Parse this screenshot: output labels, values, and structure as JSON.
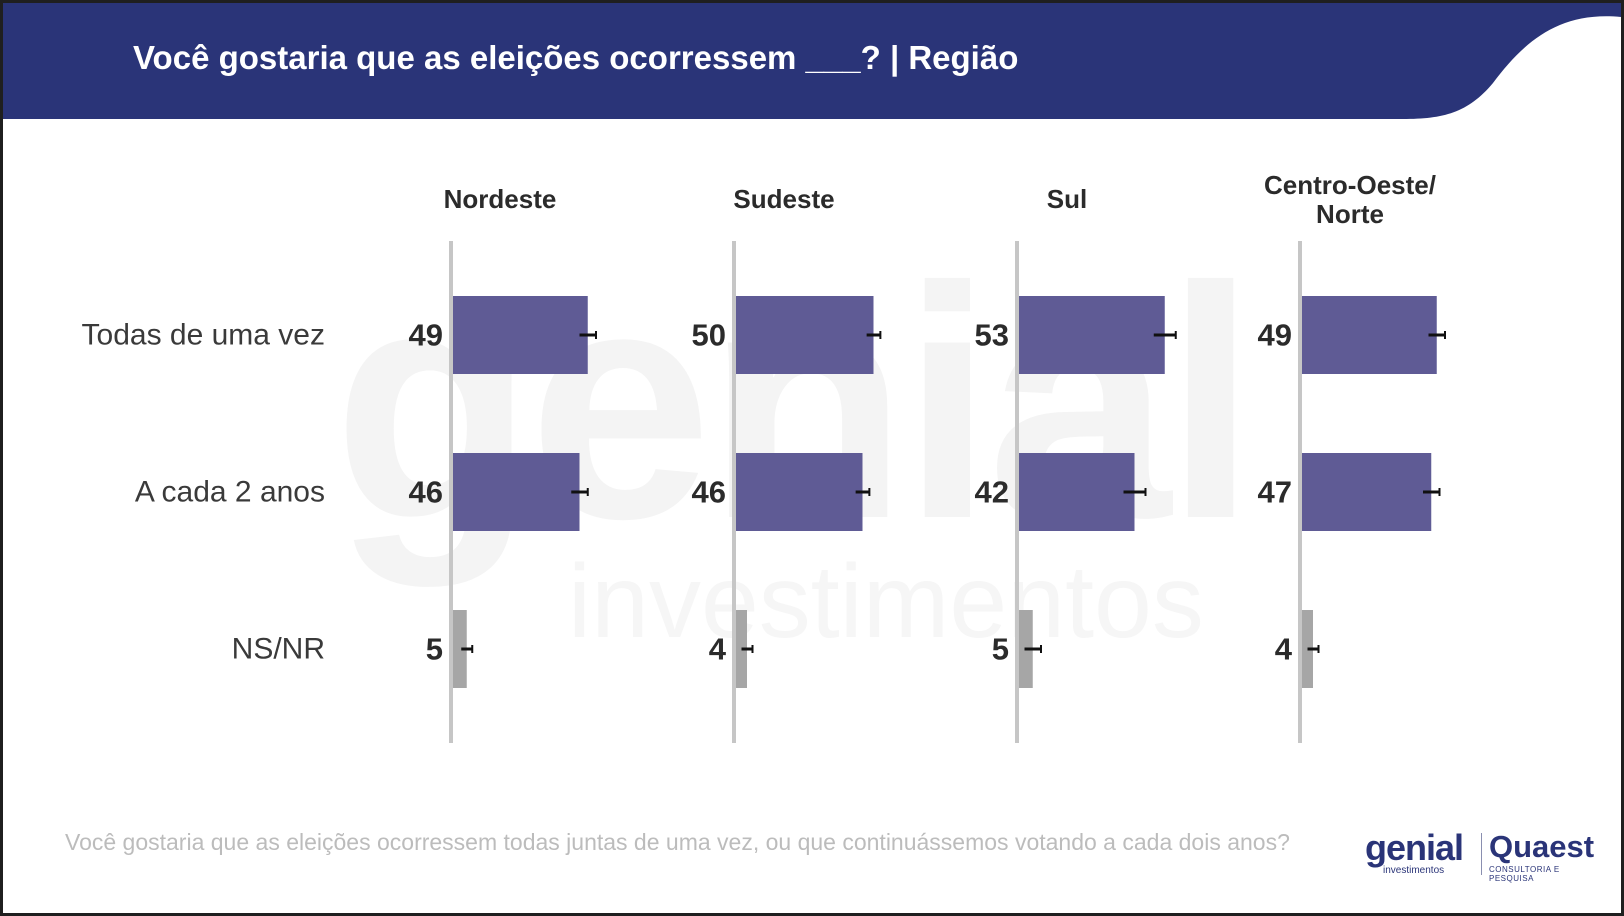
{
  "header": {
    "title": "Você gostaria que as eleições ocorressem ___? | Região"
  },
  "watermark": {
    "text_big": "genial",
    "text_small": "investimentos"
  },
  "colors": {
    "header_bg": "#2a3478",
    "bar_primary": "#5f5b95",
    "bar_secondary": "#a6a6a6",
    "axis": "#c6c6c6",
    "error_bar": "#111111"
  },
  "chart_data": {
    "type": "bar",
    "orientation": "horizontal",
    "panels": [
      "Nordeste",
      "Sudeste",
      "Sul",
      "Centro-Oeste/ Norte"
    ],
    "categories": [
      "Todas de uma vez",
      "A cada 2 anos",
      "NS/NR"
    ],
    "values": [
      [
        49,
        46,
        5
      ],
      [
        50,
        46,
        4
      ],
      [
        53,
        42,
        5
      ],
      [
        49,
        47,
        4
      ]
    ],
    "error_margins": [
      [
        3,
        3,
        2
      ],
      [
        2.5,
        2.5,
        2
      ],
      [
        4,
        4,
        3
      ],
      [
        3,
        3,
        2
      ]
    ],
    "xlim": [
      0,
      100
    ]
  },
  "footnote": "Você gostaria que as eleições ocorressem todas juntas de uma vez, ou que continuássemos votando a cada dois anos?",
  "logos": {
    "genial": "genial",
    "genial_sub": "investimentos",
    "quaest": "Quaest",
    "quaest_sub": "CONSULTORIA E PESQUISA"
  }
}
